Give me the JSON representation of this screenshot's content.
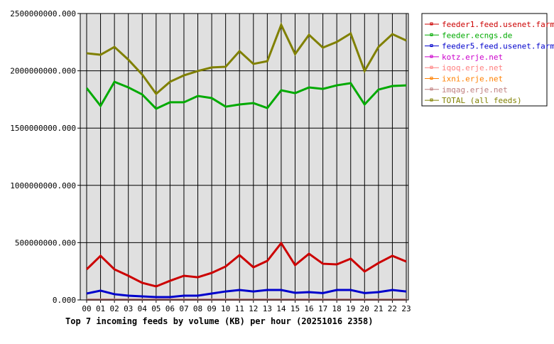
{
  "chart_data": {
    "type": "line",
    "title": "Top 7 incoming feeds by volume (KB) per hour (20251016 2358)",
    "xlabel": "",
    "ylabel": "",
    "ylim": [
      0,
      2500000000
    ],
    "yticks": [
      "0.000",
      "500000000.000",
      "1000000000.000",
      "1500000000.000",
      "2000000000.000",
      "2500000000.000"
    ],
    "grid": true,
    "legend": "right",
    "categories": [
      "00",
      "01",
      "02",
      "03",
      "04",
      "05",
      "06",
      "07",
      "08",
      "09",
      "10",
      "11",
      "12",
      "13",
      "14",
      "15",
      "16",
      "17",
      "18",
      "19",
      "20",
      "21",
      "22",
      "23"
    ],
    "series": [
      {
        "name": "feeder1.feed.usenet.farm",
        "color": "#cc0000",
        "values": [
          267,
          385,
          267,
          211,
          149,
          118,
          167,
          211,
          198,
          236,
          292,
          391,
          285,
          341,
          496,
          304,
          403,
          316,
          310,
          360,
          248,
          322,
          385,
          335
        ]
      },
      {
        "name": "feeder.ecngs.de",
        "color": "#00aa00",
        "values": [
          1849,
          1694,
          1904,
          1855,
          1793,
          1669,
          1725,
          1725,
          1780,
          1762,
          1687,
          1706,
          1718,
          1675,
          1830,
          1805,
          1855,
          1842,
          1873,
          1892,
          1706,
          1836,
          1867,
          1873
        ]
      },
      {
        "name": "feeder5.feed.usenet.farm",
        "color": "#0000cc",
        "values": [
          56,
          81,
          50,
          37,
          31,
          25,
          25,
          37,
          37,
          56,
          74,
          87,
          74,
          87,
          87,
          62,
          68,
          60,
          87,
          87,
          60,
          68,
          87,
          74
        ]
      },
      {
        "name": "kotz.erje.net",
        "color": "#cc00cc",
        "values": [
          3,
          3,
          3,
          3,
          3,
          3,
          3,
          3,
          3,
          3,
          3,
          3,
          3,
          3,
          3,
          3,
          3,
          3,
          3,
          3,
          3,
          3,
          3,
          3
        ]
      },
      {
        "name": "iqoq.erje.net",
        "color": "#ff8080",
        "values": [
          3,
          3,
          3,
          3,
          3,
          3,
          3,
          3,
          3,
          3,
          3,
          3,
          3,
          3,
          3,
          3,
          3,
          3,
          3,
          3,
          3,
          3,
          3,
          3
        ]
      },
      {
        "name": "ixni.erje.net",
        "color": "#ff8000",
        "values": [
          3,
          3,
          3,
          3,
          3,
          3,
          3,
          3,
          3,
          3,
          3,
          3,
          3,
          3,
          3,
          3,
          3,
          3,
          3,
          3,
          3,
          3,
          3,
          3
        ]
      },
      {
        "name": "imqag.erje.net",
        "color": "#c08080",
        "values": [
          3,
          3,
          3,
          3,
          3,
          3,
          3,
          3,
          3,
          3,
          3,
          3,
          3,
          3,
          3,
          3,
          3,
          3,
          3,
          3,
          3,
          3,
          3,
          3
        ]
      },
      {
        "name": "TOTAL (all feeds)",
        "color": "#808000",
        "values": [
          2153,
          2140,
          2208,
          2097,
          1967,
          1799,
          1904,
          1960,
          1998,
          2029,
          2035,
          2171,
          2060,
          2084,
          2401,
          2146,
          2314,
          2202,
          2252,
          2326,
          1998,
          2208,
          2320,
          2264
        ]
      }
    ],
    "value_unit_multiplier": 1000000
  }
}
